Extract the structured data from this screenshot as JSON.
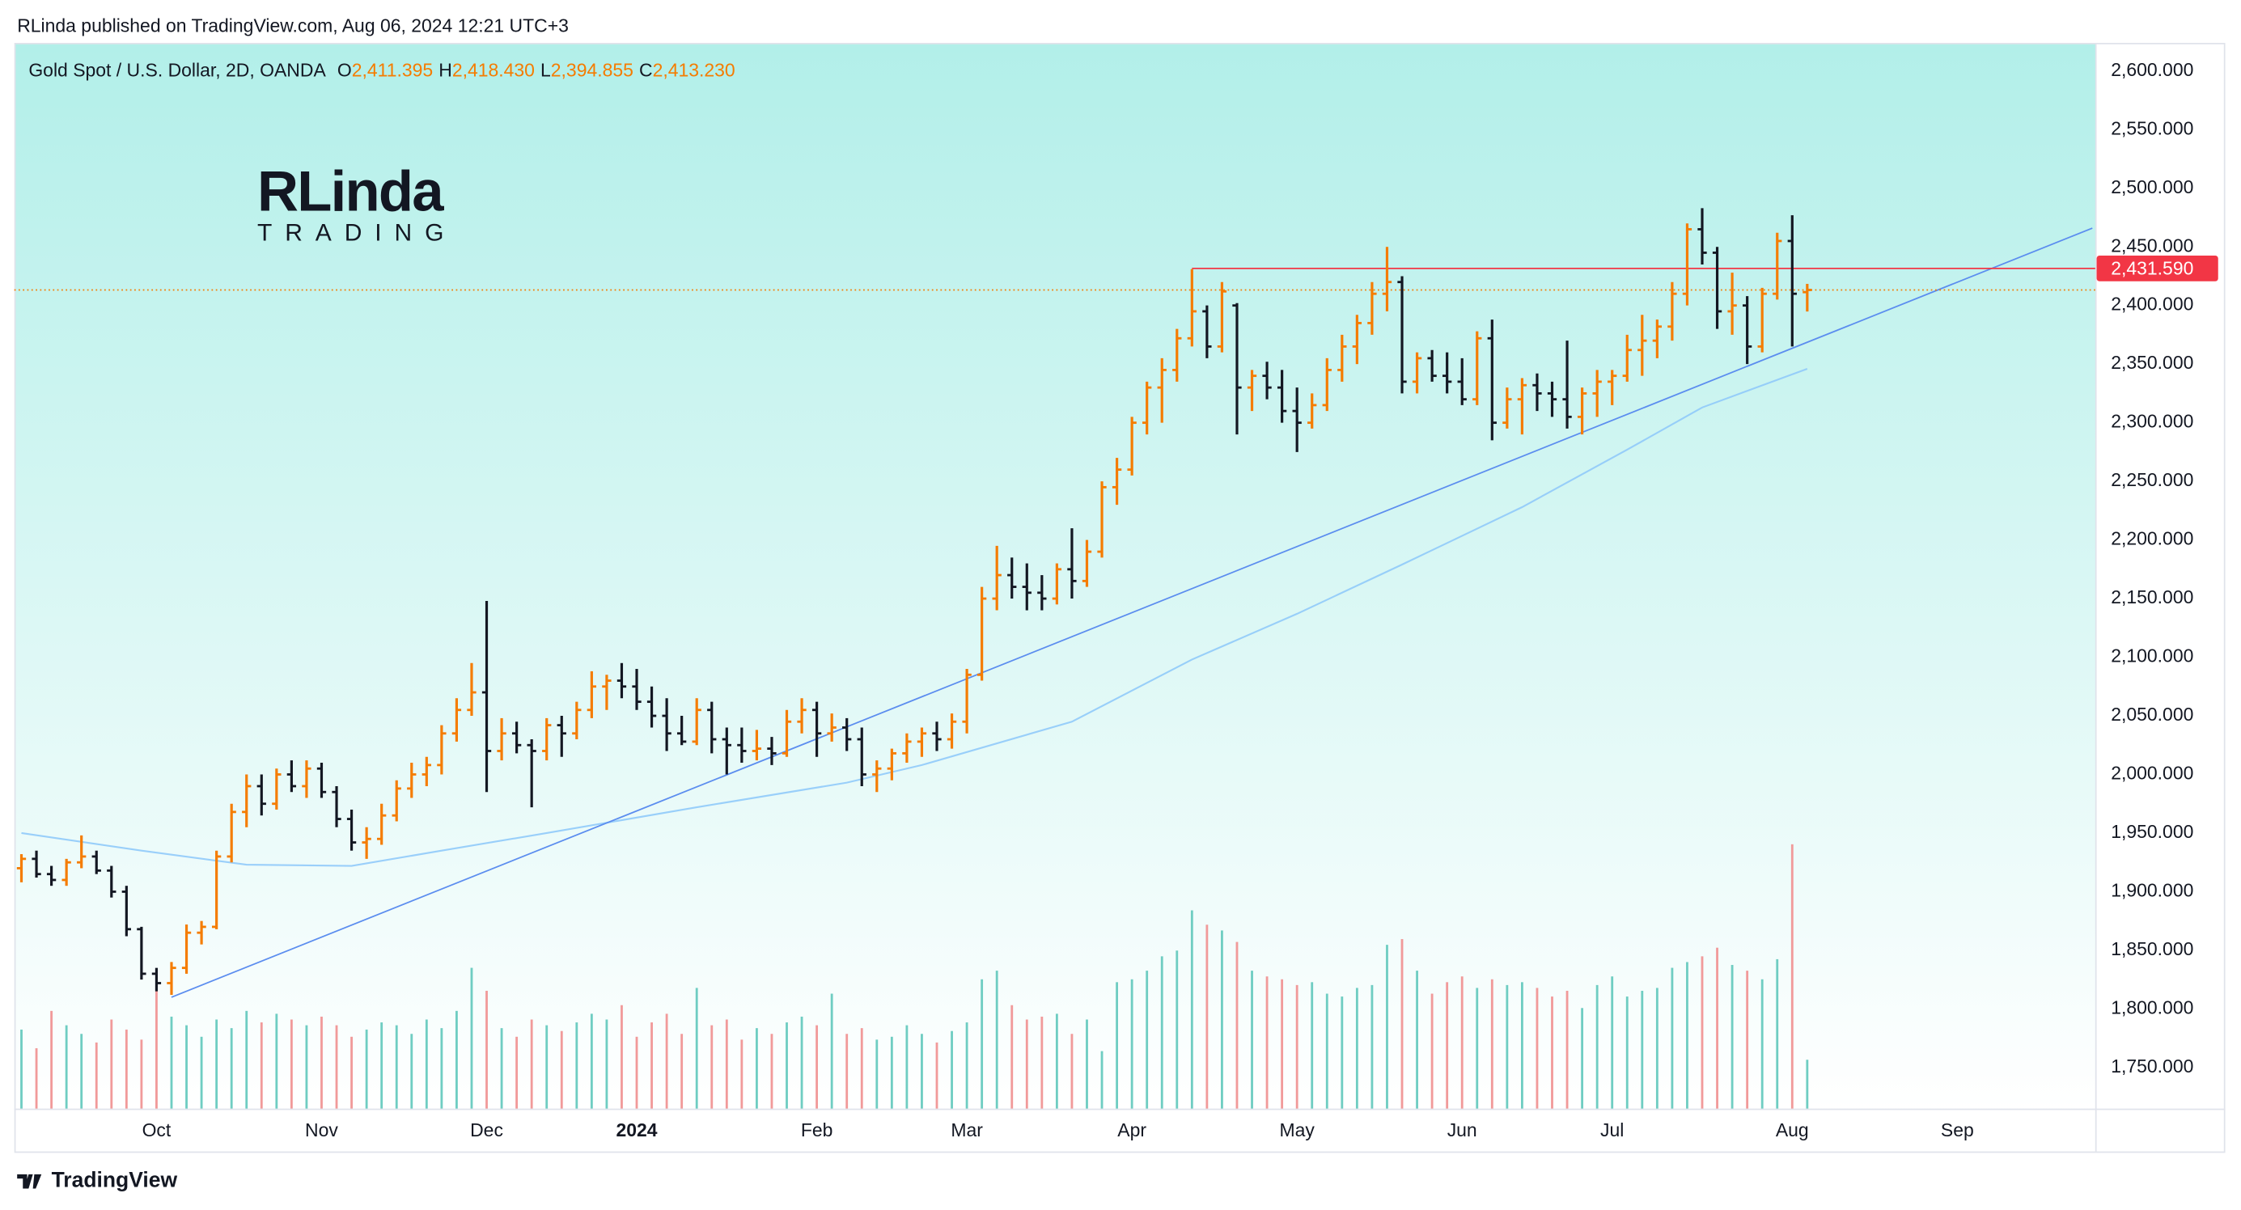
{
  "publisher": "RLinda published on TradingView.com, Aug 06, 2024 12:21 UTC+3",
  "logo": {
    "name": "RLinda",
    "tagline": "TRADING"
  },
  "footer": "TradingView",
  "chart_data": {
    "type": "ohlc",
    "title": "Gold Spot / U.S. Dollar, 2D, OANDA",
    "legend_values": [
      {
        "label": "O",
        "value": "2,411.395"
      },
      {
        "label": "H",
        "value": "2,418.430"
      },
      {
        "label": "L",
        "value": "2,394.855"
      },
      {
        "label": "C",
        "value": "2,413.230"
      }
    ],
    "up_color": "#f57c00",
    "down_color": "#131722",
    "volume_up_color": "#6fcdc2",
    "volume_down_color": "#f19a9a",
    "ylim": [
      1715,
      2624
    ],
    "yticks": [
      {
        "value": 1750,
        "label": "1,750.000"
      },
      {
        "value": 1800,
        "label": "1,800.000"
      },
      {
        "value": 1850,
        "label": "1,850.000"
      },
      {
        "value": 1900,
        "label": "1,900.000"
      },
      {
        "value": 1950,
        "label": "1,950.000"
      },
      {
        "value": 2000,
        "label": "2,000.000"
      },
      {
        "value": 2050,
        "label": "2,050.000"
      },
      {
        "value": 2100,
        "label": "2,100.000"
      },
      {
        "value": 2150,
        "label": "2,150.000"
      },
      {
        "value": 2200,
        "label": "2,200.000"
      },
      {
        "value": 2250,
        "label": "2,250.000"
      },
      {
        "value": 2300,
        "label": "2,300.000"
      },
      {
        "value": 2350,
        "label": "2,350.000"
      },
      {
        "value": 2400,
        "label": "2,400.000"
      },
      {
        "value": 2450,
        "label": "2,450.000"
      },
      {
        "value": 2500,
        "label": "2,500.000"
      },
      {
        "value": 2550,
        "label": "2,550.000"
      },
      {
        "value": 2600,
        "label": "2,600.000"
      }
    ],
    "grid": false,
    "categories": [
      null,
      null,
      null,
      null,
      null,
      null,
      null,
      null,
      null,
      "Oct",
      null,
      null,
      null,
      null,
      null,
      null,
      null,
      null,
      null,
      null,
      "Nov",
      null,
      null,
      null,
      null,
      null,
      null,
      null,
      null,
      null,
      null,
      "Dec",
      null,
      null,
      null,
      null,
      null,
      null,
      null,
      null,
      null,
      "2024",
      null,
      null,
      null,
      null,
      null,
      null,
      null,
      null,
      null,
      null,
      null,
      "Feb",
      null,
      null,
      null,
      null,
      null,
      null,
      null,
      null,
      null,
      "Mar",
      null,
      null,
      null,
      null,
      null,
      null,
      null,
      null,
      null,
      null,
      "Apr",
      null,
      null,
      null,
      null,
      null,
      null,
      null,
      null,
      null,
      null,
      "May",
      null,
      null,
      null,
      null,
      null,
      null,
      null,
      null,
      null,
      null,
      "Jun",
      null,
      null,
      null,
      null,
      null,
      null,
      null,
      null,
      null,
      "Jul",
      null,
      null,
      null,
      null,
      null,
      null,
      null,
      null,
      null,
      null,
      null,
      "Aug",
      null,
      null,
      null,
      null,
      null,
      null,
      null,
      null,
      null,
      null,
      "Sep",
      null,
      null,
      null,
      null,
      null,
      null,
      null,
      null,
      null
    ],
    "bold_categories": [
      "2024"
    ],
    "ohlc": [
      [
        1920,
        1932,
        1908,
        1928
      ],
      [
        1928,
        1935,
        1912,
        1915
      ],
      [
        1915,
        1922,
        1905,
        1910
      ],
      [
        1910,
        1928,
        1905,
        1925
      ],
      [
        1925,
        1948,
        1920,
        1930
      ],
      [
        1930,
        1935,
        1915,
        1918
      ],
      [
        1918,
        1922,
        1895,
        1900
      ],
      [
        1900,
        1905,
        1862,
        1868
      ],
      [
        1868,
        1870,
        1825,
        1830
      ],
      [
        1830,
        1835,
        1815,
        1822
      ],
      [
        1822,
        1840,
        1812,
        1835
      ],
      [
        1835,
        1872,
        1830,
        1865
      ],
      [
        1865,
        1875,
        1855,
        1870
      ],
      [
        1870,
        1935,
        1868,
        1930
      ],
      [
        1930,
        1975,
        1925,
        1968
      ],
      [
        1968,
        2000,
        1955,
        1990
      ],
      [
        1990,
        2000,
        1965,
        1975
      ],
      [
        1975,
        2005,
        1970,
        2000
      ],
      [
        2000,
        2012,
        1985,
        1990
      ],
      [
        1990,
        2012,
        1980,
        2005
      ],
      [
        2005,
        2010,
        1980,
        1985
      ],
      [
        1985,
        1990,
        1955,
        1962
      ],
      [
        1962,
        1970,
        1935,
        1942
      ],
      [
        1942,
        1955,
        1928,
        1945
      ],
      [
        1945,
        1975,
        1940,
        1965
      ],
      [
        1965,
        1995,
        1960,
        1988
      ],
      [
        1988,
        2010,
        1980,
        2000
      ],
      [
        2000,
        2015,
        1990,
        2008
      ],
      [
        2008,
        2042,
        2000,
        2035
      ],
      [
        2035,
        2065,
        2028,
        2055
      ],
      [
        2055,
        2095,
        2050,
        2070
      ],
      [
        2070,
        2148,
        1985,
        2020
      ],
      [
        2020,
        2048,
        2012,
        2035
      ],
      [
        2035,
        2045,
        2018,
        2025
      ],
      [
        2025,
        2030,
        1972,
        2020
      ],
      [
        2020,
        2048,
        2012,
        2042
      ],
      [
        2042,
        2050,
        2015,
        2035
      ],
      [
        2035,
        2062,
        2030,
        2055
      ],
      [
        2055,
        2088,
        2048,
        2075
      ],
      [
        2075,
        2085,
        2055,
        2080
      ],
      [
        2080,
        2095,
        2065,
        2075
      ],
      [
        2075,
        2090,
        2055,
        2062
      ],
      [
        2062,
        2075,
        2040,
        2050
      ],
      [
        2050,
        2065,
        2020,
        2035
      ],
      [
        2035,
        2050,
        2025,
        2028
      ],
      [
        2028,
        2065,
        2025,
        2055
      ],
      [
        2055,
        2062,
        2018,
        2030
      ],
      [
        2030,
        2040,
        2000,
        2025
      ],
      [
        2025,
        2040,
        2010,
        2020
      ],
      [
        2020,
        2038,
        2012,
        2022
      ],
      [
        2022,
        2032,
        2008,
        2018
      ],
      [
        2018,
        2055,
        2015,
        2045
      ],
      [
        2045,
        2065,
        2035,
        2055
      ],
      [
        2055,
        2062,
        2015,
        2035
      ],
      [
        2035,
        2052,
        2028,
        2040
      ],
      [
        2040,
        2048,
        2020,
        2030
      ],
      [
        2030,
        2040,
        1990,
        2000
      ],
      [
        2000,
        2012,
        1985,
        2005
      ],
      [
        2005,
        2022,
        1995,
        2018
      ],
      [
        2018,
        2035,
        2010,
        2028
      ],
      [
        2028,
        2040,
        2015,
        2035
      ],
      [
        2035,
        2045,
        2020,
        2030
      ],
      [
        2030,
        2052,
        2022,
        2045
      ],
      [
        2045,
        2090,
        2035,
        2085
      ],
      [
        2085,
        2160,
        2080,
        2150
      ],
      [
        2150,
        2195,
        2140,
        2170
      ],
      [
        2170,
        2185,
        2150,
        2160
      ],
      [
        2160,
        2180,
        2140,
        2155
      ],
      [
        2155,
        2170,
        2140,
        2150
      ],
      [
        2150,
        2180,
        2145,
        2175
      ],
      [
        2175,
        2210,
        2150,
        2165
      ],
      [
        2165,
        2200,
        2160,
        2190
      ],
      [
        2190,
        2250,
        2185,
        2245
      ],
      [
        2245,
        2270,
        2230,
        2260
      ],
      [
        2260,
        2305,
        2255,
        2300
      ],
      [
        2300,
        2335,
        2290,
        2330
      ],
      [
        2330,
        2355,
        2300,
        2345
      ],
      [
        2345,
        2380,
        2335,
        2372
      ],
      [
        2372,
        2431,
        2365,
        2395
      ],
      [
        2395,
        2400,
        2355,
        2365
      ],
      [
        2365,
        2420,
        2360,
        2412
      ],
      [
        2400,
        2402,
        2290,
        2330
      ],
      [
        2330,
        2345,
        2310,
        2340
      ],
      [
        2340,
        2352,
        2320,
        2330
      ],
      [
        2330,
        2345,
        2300,
        2310
      ],
      [
        2310,
        2330,
        2275,
        2300
      ],
      [
        2300,
        2325,
        2295,
        2315
      ],
      [
        2315,
        2355,
        2310,
        2345
      ],
      [
        2345,
        2375,
        2335,
        2365
      ],
      [
        2365,
        2392,
        2350,
        2385
      ],
      [
        2385,
        2420,
        2375,
        2410
      ],
      [
        2410,
        2450,
        2395,
        2420
      ],
      [
        2420,
        2425,
        2325,
        2335
      ],
      [
        2335,
        2360,
        2325,
        2355
      ],
      [
        2355,
        2362,
        2335,
        2340
      ],
      [
        2340,
        2360,
        2325,
        2335
      ],
      [
        2335,
        2355,
        2315,
        2320
      ],
      [
        2320,
        2378,
        2315,
        2372
      ],
      [
        2372,
        2388,
        2285,
        2300
      ],
      [
        2300,
        2330,
        2295,
        2320
      ],
      [
        2320,
        2338,
        2290,
        2332
      ],
      [
        2332,
        2342,
        2310,
        2325
      ],
      [
        2325,
        2335,
        2305,
        2320
      ],
      [
        2320,
        2370,
        2295,
        2305
      ],
      [
        2305,
        2330,
        2290,
        2325
      ],
      [
        2325,
        2345,
        2305,
        2335
      ],
      [
        2335,
        2345,
        2315,
        2340
      ],
      [
        2340,
        2375,
        2335,
        2362
      ],
      [
        2362,
        2392,
        2340,
        2370
      ],
      [
        2370,
        2388,
        2355,
        2382
      ],
      [
        2382,
        2420,
        2370,
        2410
      ],
      [
        2410,
        2470,
        2400,
        2465
      ],
      [
        2465,
        2483,
        2435,
        2445
      ],
      [
        2445,
        2450,
        2380,
        2395
      ],
      [
        2395,
        2428,
        2375,
        2400
      ],
      [
        2400,
        2408,
        2350,
        2365
      ],
      [
        2365,
        2415,
        2360,
        2410
      ],
      [
        2410,
        2462,
        2405,
        2455
      ],
      [
        2455,
        2477,
        2365,
        2410
      ],
      [
        2411.395,
        2418.43,
        2394.855,
        2413.23
      ],
      null,
      null,
      null,
      null,
      null,
      null,
      null,
      null,
      null,
      null,
      null,
      null,
      null,
      null,
      null,
      null,
      null,
      null,
      null
    ],
    "volume": [
      55,
      42,
      68,
      58,
      52,
      46,
      62,
      55,
      48,
      82,
      64,
      58,
      50,
      62,
      56,
      68,
      60,
      66,
      62,
      58,
      64,
      58,
      50,
      55,
      60,
      58,
      52,
      62,
      56,
      68,
      98,
      82,
      56,
      50,
      62,
      58,
      54,
      60,
      66,
      62,
      72,
      50,
      60,
      66,
      52,
      84,
      58,
      62,
      48,
      56,
      52,
      60,
      64,
      58,
      80,
      52,
      56,
      48,
      50,
      58,
      52,
      46,
      54,
      60,
      90,
      96,
      72,
      62,
      64,
      66,
      52,
      62,
      40,
      88,
      90,
      96,
      106,
      110,
      138,
      128,
      124,
      116,
      96,
      92,
      90,
      86,
      88,
      80,
      78,
      84,
      86,
      114,
      118,
      96,
      80,
      88,
      92,
      84,
      90,
      86,
      88,
      84,
      78,
      82,
      70,
      86,
      92,
      78,
      82,
      84,
      98,
      102,
      106,
      112,
      100,
      96,
      90,
      104,
      184,
      34,
      null,
      null,
      null,
      null,
      null,
      null,
      null,
      null,
      null,
      null,
      null,
      null,
      null,
      null,
      null,
      null,
      null,
      null,
      null
    ],
    "ma": {
      "color": "#90caf9",
      "x": [
        0,
        8,
        15,
        22,
        28,
        35,
        45,
        55,
        60,
        70,
        78,
        85,
        92,
        100,
        107,
        112,
        119
      ],
      "values": [
        1950,
        1935,
        1923,
        1922,
        1935,
        1950,
        1972,
        1993,
        2008,
        2045,
        2098,
        2137,
        2179,
        2228,
        2277,
        2313,
        2346
      ]
    },
    "trendline": {
      "color": "#5b8def",
      "x": [
        10,
        138
      ],
      "values": [
        1810,
        2466
      ]
    },
    "level": {
      "color": "#f23645",
      "from": 78,
      "value": 2431.59,
      "label": "2,431.590"
    }
  }
}
